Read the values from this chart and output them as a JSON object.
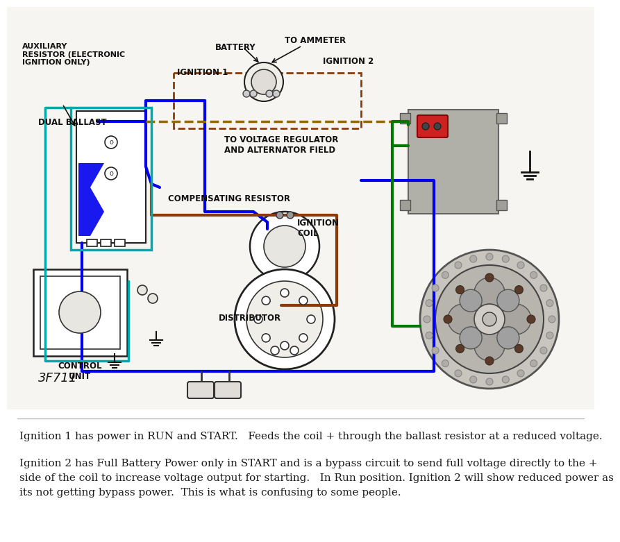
{
  "bg_color": "#ffffff",
  "diagram_bg": "#ffffff",
  "wire_blue": "#0000ee",
  "wire_brown": "#8B3A0A",
  "wire_green": "#007700",
  "wire_cyan": "#00aaaa",
  "wire_orange_dash": "#996600",
  "text_color": "#222222",
  "label_color": "#111111",
  "text_line1": "Ignition 1 has power in RUN and START.   Feeds the coil + through the ballast resistor at a reduced voltage.",
  "text_line2": "Ignition 2 has Full Battery Power only in START and is a bypass circuit to send full voltage directly to the +",
  "text_line3": "side of the coil to increase voltage output for starting.   In Run position. Ignition 2 will show reduced power as",
  "text_line4": "its not getting bypass power.  This is what is confusing to some people.",
  "label_AUX": "AUXILIARY\nRESISTOR (ELECTRONIC\nIGNITION ONLY)",
  "label_DUAL": "DUAL BALLAST",
  "label_BATTERY": "BATTERY",
  "label_TOAMMETER": "TO AMMETER",
  "label_IGN1": "IGNITION 1",
  "label_IGN2": "IGNITION 2",
  "label_VOLTAGE": "TO VOLTAGE REGULATOR\nAND ALTERNATOR FIELD",
  "label_COMP": "COMPENSATING RESISTOR",
  "label_COIL": "IGNITION\nCOIL",
  "label_DIST": "DISTRIBUTOR",
  "label_CTRL": "CONTROL\nUNIT",
  "label_3F711": "3F711"
}
